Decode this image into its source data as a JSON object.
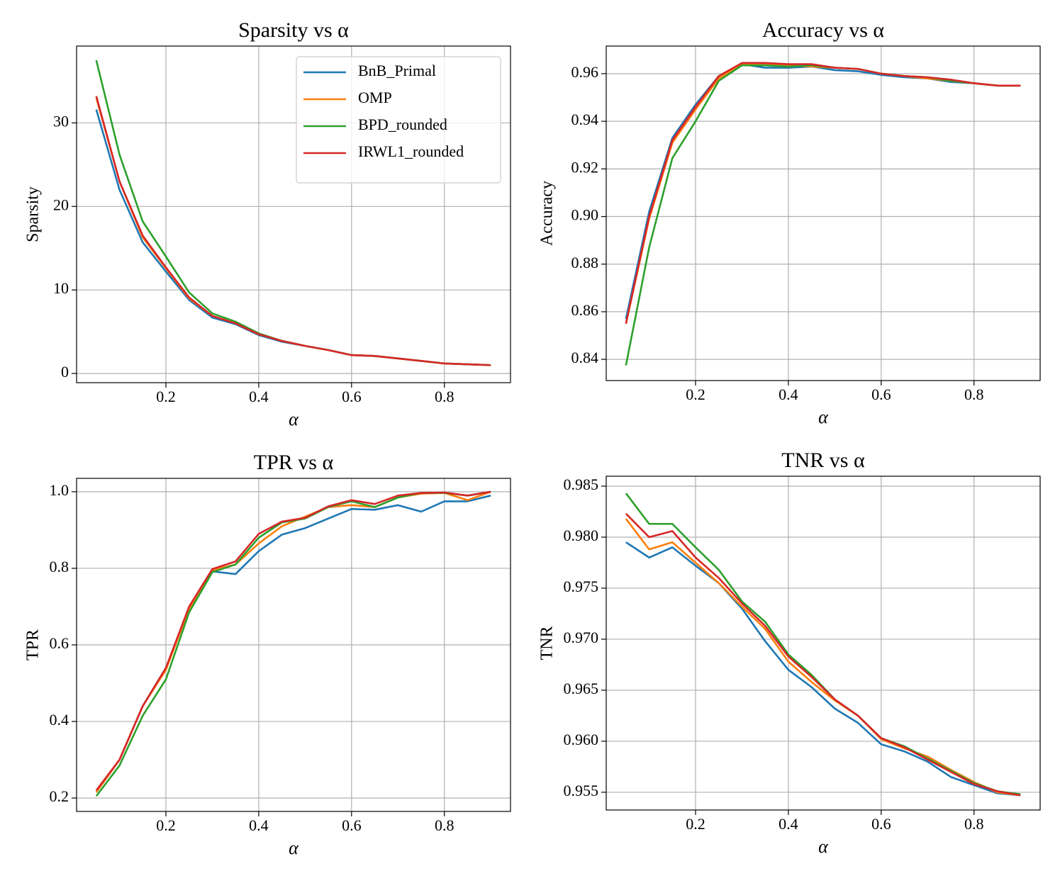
{
  "chart_data": [
    {
      "type": "line",
      "title": "Sparsity vs α",
      "xlabel": "α",
      "ylabel": "Sparsity",
      "x": [
        0.05,
        0.1,
        0.15,
        0.2,
        0.25,
        0.3,
        0.35,
        0.4,
        0.45,
        0.5,
        0.55,
        0.6,
        0.65,
        0.7,
        0.75,
        0.8,
        0.85,
        0.9
      ],
      "xlim": [
        0.0075,
        0.9425
      ],
      "xticks": [
        0.2,
        0.4,
        0.6,
        0.8
      ],
      "ylim": [
        -1.1,
        39.2
      ],
      "yticks": [
        0,
        10,
        20,
        30
      ],
      "grid": true,
      "legend": "upper right",
      "series": [
        {
          "name": "BnB_Primal",
          "color": "#1f77b4",
          "values": [
            31.6,
            22.0,
            15.7,
            12.2,
            8.8,
            6.7,
            5.9,
            4.6,
            3.8,
            3.3,
            2.8,
            2.2,
            2.1,
            1.8,
            1.5,
            1.2,
            1.1,
            1.0
          ]
        },
        {
          "name": "OMP",
          "color": "#ff7f0e",
          "values": [
            33.0,
            23.0,
            16.3,
            12.6,
            9.0,
            6.9,
            6.0,
            4.7,
            3.9,
            3.3,
            2.8,
            2.2,
            2.1,
            1.8,
            1.5,
            1.2,
            1.1,
            1.0
          ]
        },
        {
          "name": "BPD_rounded",
          "color": "#2ca02c",
          "values": [
            37.5,
            26.2,
            18.2,
            14.0,
            9.7,
            7.2,
            6.2,
            4.8,
            3.9,
            3.3,
            2.8,
            2.2,
            2.1,
            1.8,
            1.5,
            1.2,
            1.1,
            1.0
          ]
        },
        {
          "name": "IRWL1_rounded",
          "color": "#d62728",
          "values": [
            33.2,
            23.0,
            16.5,
            12.7,
            9.1,
            6.9,
            6.0,
            4.7,
            3.9,
            3.3,
            2.8,
            2.2,
            2.1,
            1.8,
            1.5,
            1.2,
            1.1,
            1.0
          ]
        }
      ]
    },
    {
      "type": "line",
      "title": "Accuracy vs α",
      "xlabel": "α",
      "ylabel": "Accuracy",
      "x": [
        0.05,
        0.1,
        0.15,
        0.2,
        0.25,
        0.3,
        0.35,
        0.4,
        0.45,
        0.5,
        0.55,
        0.6,
        0.65,
        0.7,
        0.75,
        0.8,
        0.85,
        0.9
      ],
      "xlim": [
        0.0075,
        0.9425
      ],
      "xticks": [
        0.2,
        0.4,
        0.6,
        0.8
      ],
      "ylim": [
        0.8311,
        0.9716
      ],
      "yticks": [
        0.84,
        0.86,
        0.88,
        {
          "value": 0.9,
          "label": "0.90"
        },
        0.92,
        0.94,
        0.96
      ],
      "grid": true,
      "series": [
        {
          "color": "#1f77b4",
          "values": [
            0.857,
            0.902,
            0.933,
            0.947,
            0.959,
            0.964,
            0.9625,
            0.9625,
            0.963,
            0.9615,
            0.961,
            0.9595,
            0.9585,
            0.958,
            0.9565,
            0.956,
            0.955,
            0.955
          ]
        },
        {
          "color": "#ff7f0e",
          "values": [
            0.855,
            0.899,
            0.931,
            0.945,
            0.958,
            0.964,
            0.964,
            0.9635,
            0.963,
            0.9625,
            0.962,
            0.96,
            0.959,
            0.958,
            0.957,
            0.956,
            0.955,
            0.955
          ]
        },
        {
          "color": "#2ca02c",
          "values": [
            0.8375,
            0.887,
            0.9245,
            0.94,
            0.957,
            0.9635,
            0.9635,
            0.963,
            0.9635,
            0.9625,
            0.962,
            0.96,
            0.959,
            0.9585,
            0.957,
            0.956,
            0.955,
            0.955
          ]
        },
        {
          "color": "#d62728",
          "values": [
            0.855,
            0.9,
            0.932,
            0.946,
            0.959,
            0.9645,
            0.9645,
            0.964,
            0.964,
            0.9625,
            0.962,
            0.96,
            0.959,
            0.9585,
            0.9575,
            0.956,
            0.955,
            0.955
          ]
        }
      ]
    },
    {
      "type": "line",
      "title": "TPR vs α",
      "xlabel": "α",
      "ylabel": "TPR",
      "x": [
        0.05,
        0.1,
        0.15,
        0.2,
        0.25,
        0.3,
        0.35,
        0.4,
        0.45,
        0.5,
        0.55,
        0.6,
        0.65,
        0.7,
        0.75,
        0.8,
        0.85,
        0.9
      ],
      "xlim": [
        0.0075,
        0.9425
      ],
      "xticks": [
        0.2,
        0.4,
        0.6,
        0.8
      ],
      "ylim": [
        0.165,
        1.035
      ],
      "yticks": [
        0.2,
        0.4,
        0.6,
        0.8,
        {
          "value": 1,
          "label": "1.0"
        }
      ],
      "grid": true,
      "series": [
        {
          "color": "#1f77b4",
          "values": [
            0.215,
            0.3,
            0.44,
            0.54,
            0.695,
            0.792,
            0.785,
            0.845,
            0.888,
            0.905,
            0.93,
            0.955,
            0.953,
            0.965,
            0.948,
            0.975,
            0.975,
            0.99
          ]
        },
        {
          "color": "#ff7f0e",
          "values": [
            0.215,
            0.3,
            0.44,
            0.535,
            0.695,
            0.795,
            0.81,
            0.865,
            0.91,
            0.935,
            0.96,
            0.965,
            0.96,
            0.985,
            0.995,
            0.997,
            0.978,
            1.0
          ]
        },
        {
          "color": "#2ca02c",
          "values": [
            0.205,
            0.285,
            0.415,
            0.51,
            0.685,
            0.79,
            0.81,
            0.88,
            0.92,
            0.93,
            0.96,
            0.975,
            0.96,
            0.985,
            0.997,
            0.997,
            0.99,
            1.0
          ]
        },
        {
          "color": "#d62728",
          "values": [
            0.22,
            0.3,
            0.44,
            0.54,
            0.7,
            0.798,
            0.818,
            0.89,
            0.922,
            0.932,
            0.962,
            0.978,
            0.968,
            0.99,
            0.997,
            0.998,
            0.99,
            1.0
          ]
        }
      ]
    },
    {
      "type": "line",
      "title": "TNR vs α",
      "xlabel": "α",
      "ylabel": "TNR",
      "x": [
        0.05,
        0.1,
        0.15,
        0.2,
        0.25,
        0.3,
        0.35,
        0.4,
        0.45,
        0.5,
        0.55,
        0.6,
        0.65,
        0.7,
        0.75,
        0.8,
        0.85,
        0.9
      ],
      "xlim": [
        0.0075,
        0.9425
      ],
      "xticks": [
        0.2,
        0.4,
        0.6,
        0.8
      ],
      "ylim": [
        0.95326,
        0.98597
      ],
      "yticks": [
        0.955,
        {
          "value": 0.96,
          "label": "0.960"
        },
        0.965,
        {
          "value": 0.97,
          "label": "0.970"
        },
        0.975,
        {
          "value": 0.98,
          "label": "0.980"
        },
        0.985
      ],
      "grid": true,
      "series": [
        {
          "color": "#1f77b4",
          "values": [
            0.9795,
            0.978,
            0.979,
            0.9772,
            0.9755,
            0.973,
            0.9698,
            0.967,
            0.9653,
            0.9632,
            0.9618,
            0.9597,
            0.959,
            0.958,
            0.9565,
            0.9557,
            0.9549,
            0.9547
          ]
        },
        {
          "color": "#ff7f0e",
          "values": [
            0.9818,
            0.9788,
            0.9795,
            0.9775,
            0.9755,
            0.9732,
            0.971,
            0.9678,
            0.9658,
            0.964,
            0.9625,
            0.9602,
            0.9593,
            0.9585,
            0.9572,
            0.956,
            0.955,
            0.9547
          ]
        },
        {
          "color": "#2ca02c",
          "values": [
            0.9843,
            0.9813,
            0.9813,
            0.979,
            0.9768,
            0.9737,
            0.9717,
            0.9685,
            0.9665,
            0.9641,
            0.9625,
            0.9603,
            0.9595,
            0.9583,
            0.9571,
            0.9559,
            0.9551,
            0.9548
          ]
        },
        {
          "color": "#d62728",
          "values": [
            0.9823,
            0.98,
            0.9806,
            0.978,
            0.976,
            0.9735,
            0.9713,
            0.9683,
            0.9663,
            0.9641,
            0.9625,
            0.9603,
            0.9594,
            0.9582,
            0.957,
            0.9558,
            0.9551,
            0.9547
          ]
        }
      ]
    }
  ]
}
